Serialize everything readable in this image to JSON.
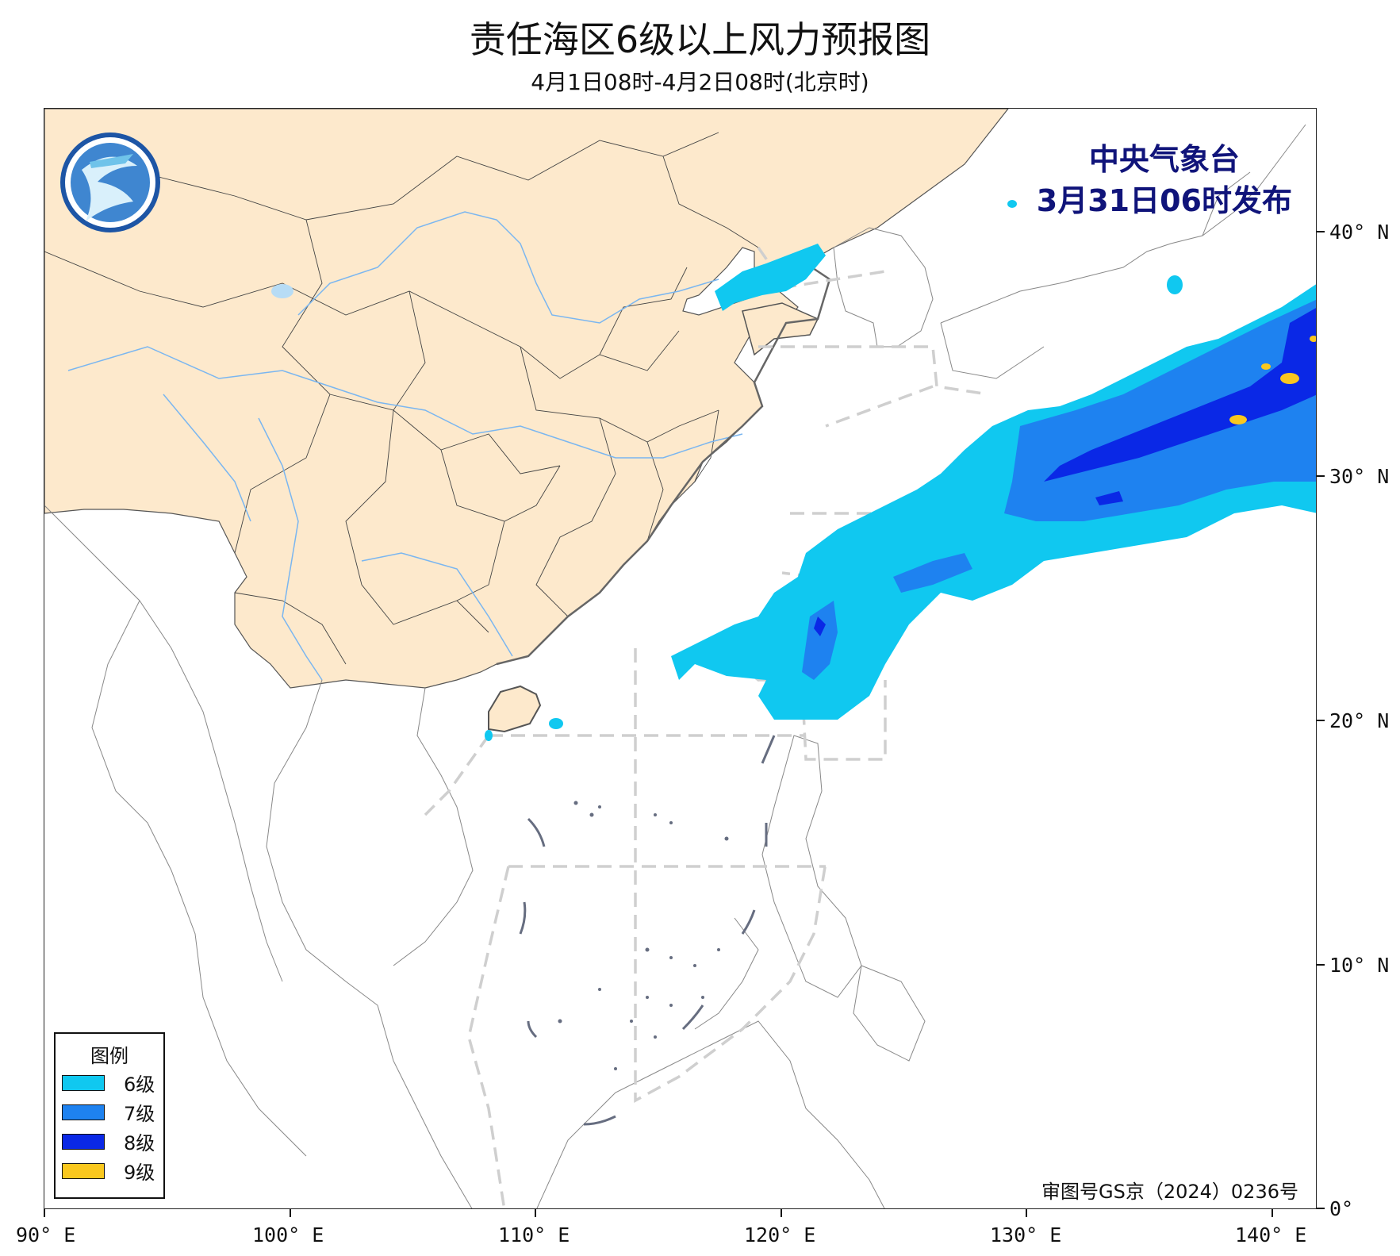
{
  "title": "责任海区6级以上风力预报图",
  "subtitle": "4月1日08时-4月2日08时(北京时)",
  "issuer": {
    "name": "中央气象台",
    "time": "3月31日06时发布"
  },
  "approval": "审图号GS京（2024）0236号",
  "legend": {
    "title": "图例",
    "items": [
      {
        "label": "6级",
        "color": "#10c8f0"
      },
      {
        "label": "7级",
        "color": "#1e82f0"
      },
      {
        "label": "8级",
        "color": "#0a28e6"
      },
      {
        "label": "9级",
        "color": "#fac81e"
      }
    ]
  },
  "axes": {
    "x_ticks": [
      "90° E",
      "100° E",
      "110° E",
      "120° E",
      "130° E",
      "140° E"
    ],
    "y_ticks": [
      "40° N",
      "30° N",
      "20° N",
      "10° N",
      "0°"
    ]
  },
  "colors": {
    "land": "#fde9cc",
    "river": "#7ab6f0",
    "zone_border": "#cfcfcf",
    "coast": "#666666"
  },
  "logo": "cma-logo-icon"
}
